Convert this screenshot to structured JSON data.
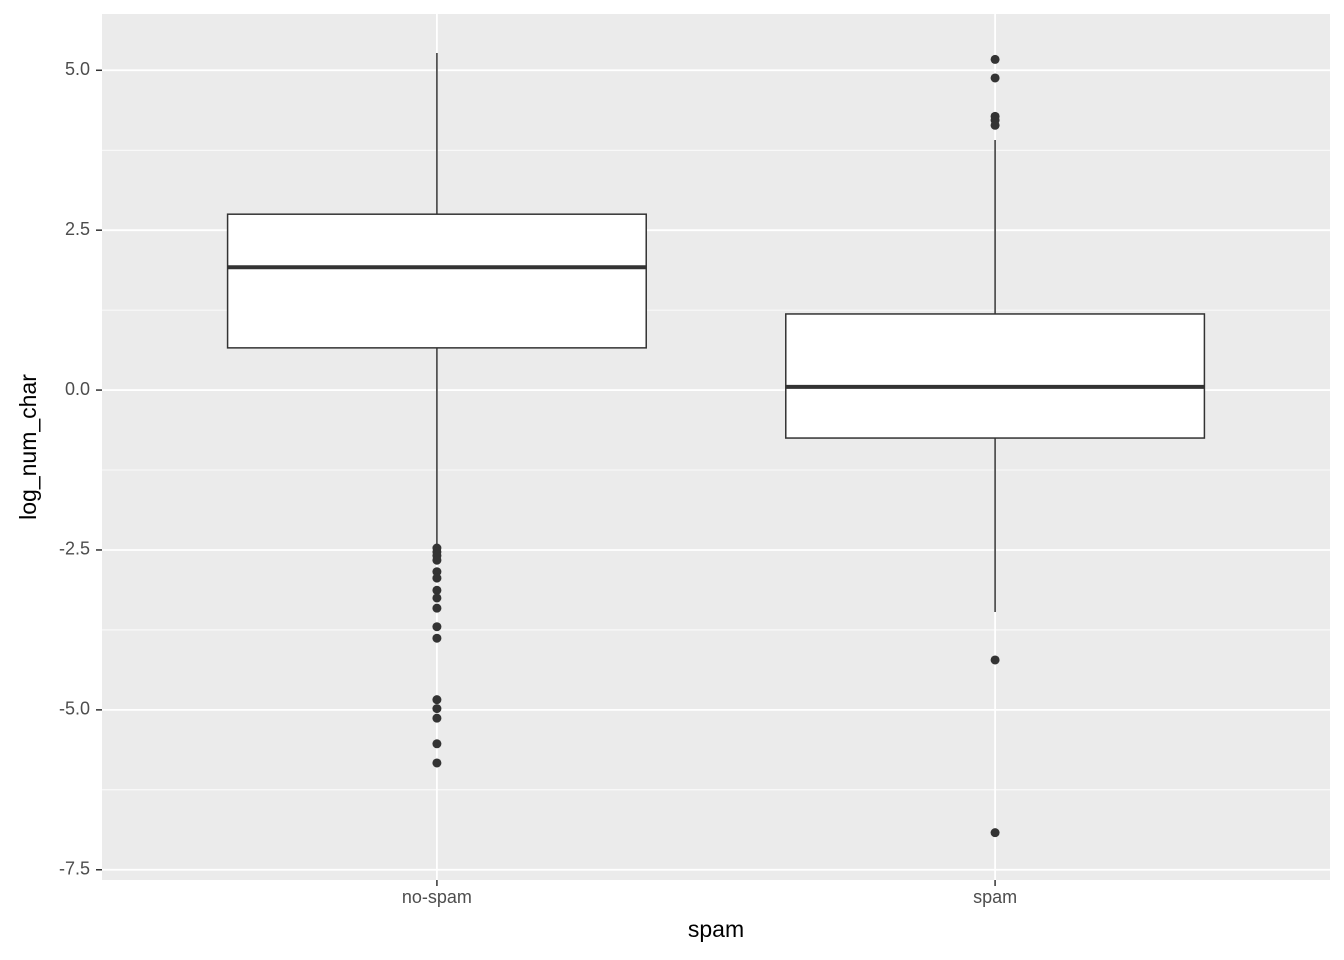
{
  "chart_data": {
    "type": "box",
    "x_label": "spam",
    "y_label": "log_num_char",
    "categories": [
      "no-spam",
      "spam"
    ],
    "boxes": [
      {
        "min": -2.45,
        "q1": 0.66,
        "median": 1.92,
        "q3": 2.75,
        "max": 5.27,
        "outliers": [
          -2.47,
          -2.53,
          -2.59,
          -2.66,
          -2.84,
          -2.94,
          -3.13,
          -3.25,
          -3.41,
          -3.7,
          -3.88,
          -4.84,
          -4.98,
          -5.13,
          -5.53,
          -5.83
        ]
      },
      {
        "min": -3.47,
        "q1": -0.75,
        "median": 0.05,
        "q3": 1.19,
        "max": 3.91,
        "outliers": [
          5.17,
          4.88,
          4.28,
          4.22,
          4.14,
          -4.22,
          -6.92
        ]
      }
    ],
    "color": "#333333",
    "fill": "#ffffff",
    "ylim": [
      -7.66,
      5.88
    ],
    "yticks": [
      {
        "value": 5,
        "label": "5.0"
      },
      {
        "value": 2.5,
        "label": "2.5"
      },
      {
        "value": 0,
        "label": "0.0"
      },
      {
        "value": -2.5,
        "label": "-2.5"
      },
      {
        "value": -5,
        "label": "-5.0"
      },
      {
        "value": -7.5,
        "label": "-7.5"
      }
    ],
    "grid": true
  }
}
